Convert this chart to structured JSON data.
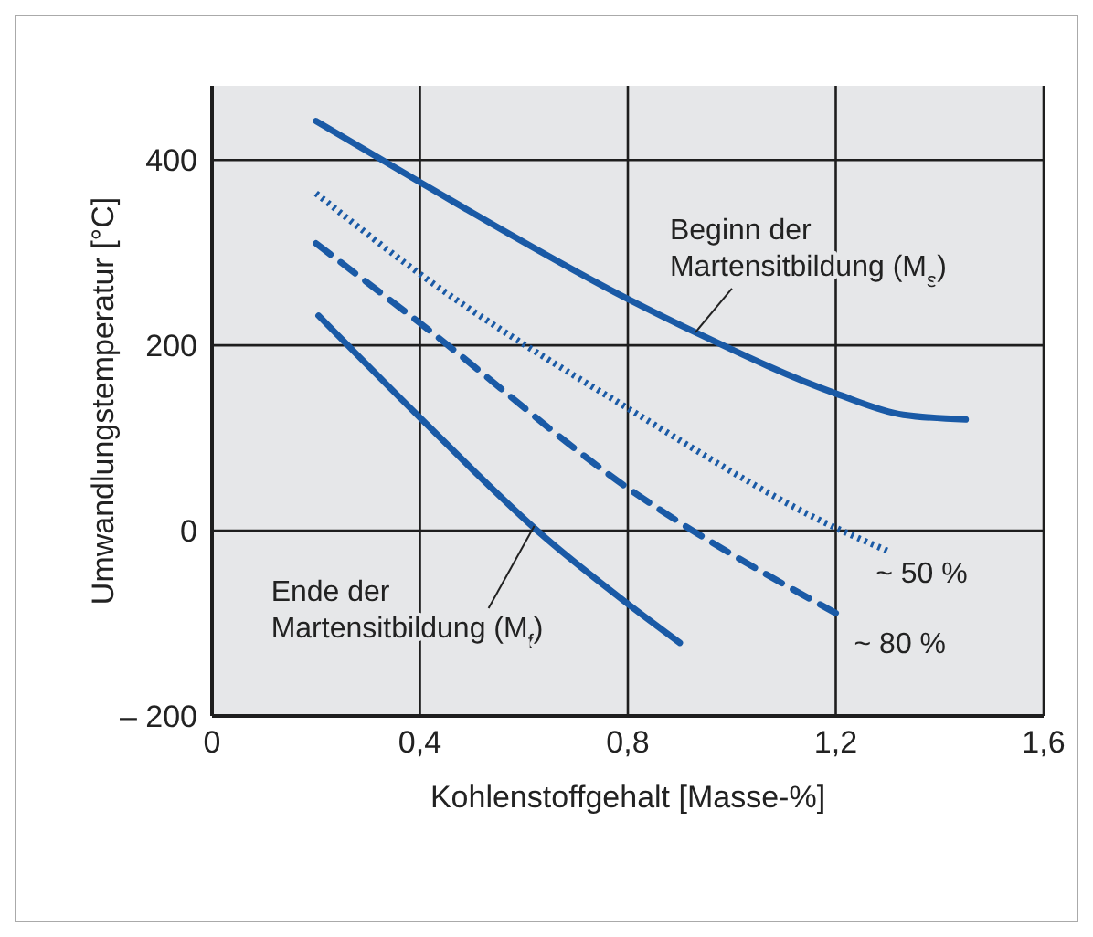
{
  "chart_data": {
    "type": "line",
    "xlabel": "Kohlenstoffgehalt [Masse-%]",
    "ylabel": "Umwandlungstemperatur [°C]",
    "xlim": [
      0,
      1.6
    ],
    "xticks": [
      0,
      {
        "value": 0.4,
        "label": "0,4"
      },
      {
        "value": 0.8,
        "label": "0,8"
      },
      {
        "value": 1.2,
        "label": "1,2"
      },
      {
        "value": 1.6,
        "label": "1,6"
      }
    ],
    "ylim": [
      -200,
      480
    ],
    "yticks": [
      {
        "value": -200,
        "label": "– 200"
      },
      0,
      200,
      400
    ],
    "grid": true,
    "legend": false,
    "marker": "none",
    "series": [
      {
        "color": "#1a5aa6",
        "line_style": "solid",
        "x": [
          0.2,
          0.4,
          0.8,
          0.93,
          1.2,
          1.33,
          1.45
        ],
        "values": [
          442,
          376,
          250,
          214,
          148,
          125,
          120
        ]
      },
      {
        "color": "#1a5aa6",
        "line_style": "dotted",
        "x": [
          0.2,
          0.4,
          0.8,
          1.2,
          1.305
        ],
        "values": [
          364,
          277,
          132,
          3,
          -23
        ]
      },
      {
        "color": "#1a5aa6",
        "line_style": "dashed",
        "x": [
          0.2,
          0.4,
          0.8,
          1.2
        ],
        "values": [
          310,
          224,
          46,
          -89
        ]
      },
      {
        "color": "#1a5aa6",
        "line_style": "solid",
        "x": [
          0.205,
          0.4,
          0.64,
          0.8,
          0.9
        ],
        "values": [
          232,
          122,
          -7,
          -79,
          -121
        ]
      }
    ],
    "annotations": [
      {
        "text": "Beginn der\nMartensitbildung (M$_{s}$)",
        "x": 0.93,
        "y": 214
      },
      {
        "text": "~ 50 %",
        "x": 1.305,
        "y": -23
      },
      {
        "text": "~ 80 %",
        "x": 1.2,
        "y": -89
      },
      {
        "text": "Ende der\nMartensitbildung (M$_{f}$)",
        "x": 0.62,
        "y": 5
      }
    ]
  }
}
